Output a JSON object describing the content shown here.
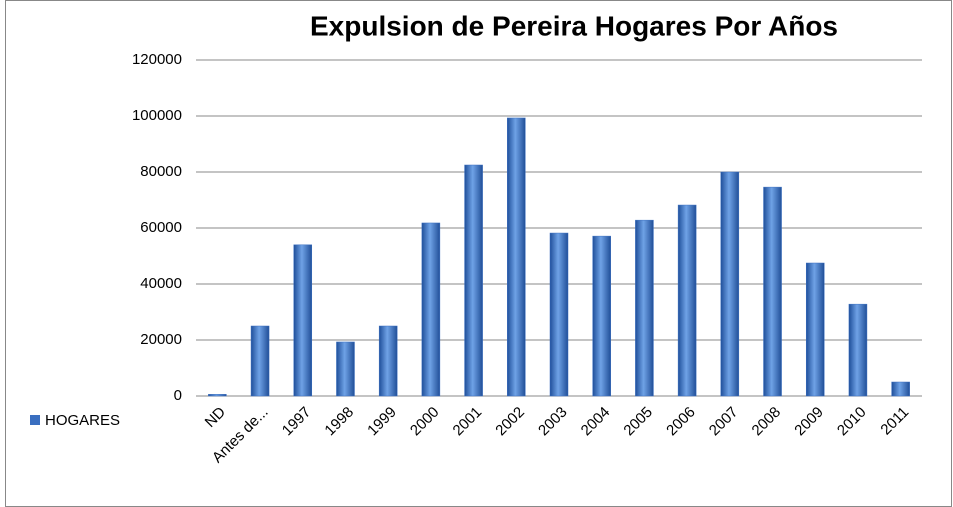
{
  "chart_data": {
    "type": "bar",
    "title": "Expulsion de Pereira  Hogares  Por Años",
    "categories": [
      "ND",
      "Antes de...",
      "1997",
      "1998",
      "1999",
      "2000",
      "2001",
      "2002",
      "2003",
      "2004",
      "2005",
      "2006",
      "2007",
      "2008",
      "2009",
      "2010",
      "2011"
    ],
    "series": [
      {
        "name": "HOGARES",
        "color": "#3a6fc0",
        "values": [
          600,
          25000,
          54000,
          19300,
          25000,
          61800,
          82500,
          99300,
          58200,
          57100,
          62800,
          68200,
          80000,
          74600,
          47500,
          32800,
          5000
        ]
      }
    ],
    "ylim": [
      0,
      120000
    ],
    "yticks": [
      0,
      20000,
      40000,
      60000,
      80000,
      100000,
      120000
    ],
    "grid": true,
    "legend": "left"
  }
}
